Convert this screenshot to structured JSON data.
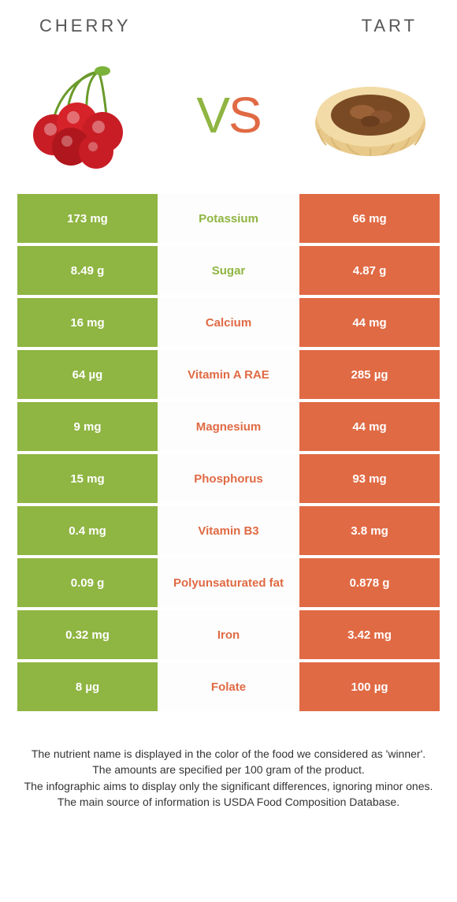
{
  "header": {
    "left": "CHERRY",
    "right": "TART"
  },
  "vs": {
    "v": "V",
    "s": "S"
  },
  "colors": {
    "left": "#8fb542",
    "right": "#e06a44",
    "text_white": "#ffffff"
  },
  "table": {
    "type": "comparison-table",
    "rows": [
      {
        "left": "173 mg",
        "label": "Potassium",
        "right": "66 mg",
        "winner": "left"
      },
      {
        "left": "8.49 g",
        "label": "Sugar",
        "right": "4.87 g",
        "winner": "left"
      },
      {
        "left": "16 mg",
        "label": "Calcium",
        "right": "44 mg",
        "winner": "right"
      },
      {
        "left": "64 µg",
        "label": "Vitamin A RAE",
        "right": "285 µg",
        "winner": "right"
      },
      {
        "left": "9 mg",
        "label": "Magnesium",
        "right": "44 mg",
        "winner": "right"
      },
      {
        "left": "15 mg",
        "label": "Phosphorus",
        "right": "93 mg",
        "winner": "right"
      },
      {
        "left": "0.4 mg",
        "label": "Vitamin B3",
        "right": "3.8 mg",
        "winner": "right"
      },
      {
        "left": "0.09 g",
        "label": "Polyunsaturated fat",
        "right": "0.878 g",
        "winner": "right"
      },
      {
        "left": "0.32 mg",
        "label": "Iron",
        "right": "3.42 mg",
        "winner": "right"
      },
      {
        "left": "8 µg",
        "label": "Folate",
        "right": "100 µg",
        "winner": "right"
      }
    ]
  },
  "footer": {
    "lines": [
      "The nutrient name is displayed in the color of the food we considered as 'winner'.",
      "The amounts are specified per 100 gram of the product.",
      "The infographic aims to display only the significant differences, ignoring minor ones.",
      "The main source of information is USDA Food Composition Database."
    ]
  }
}
